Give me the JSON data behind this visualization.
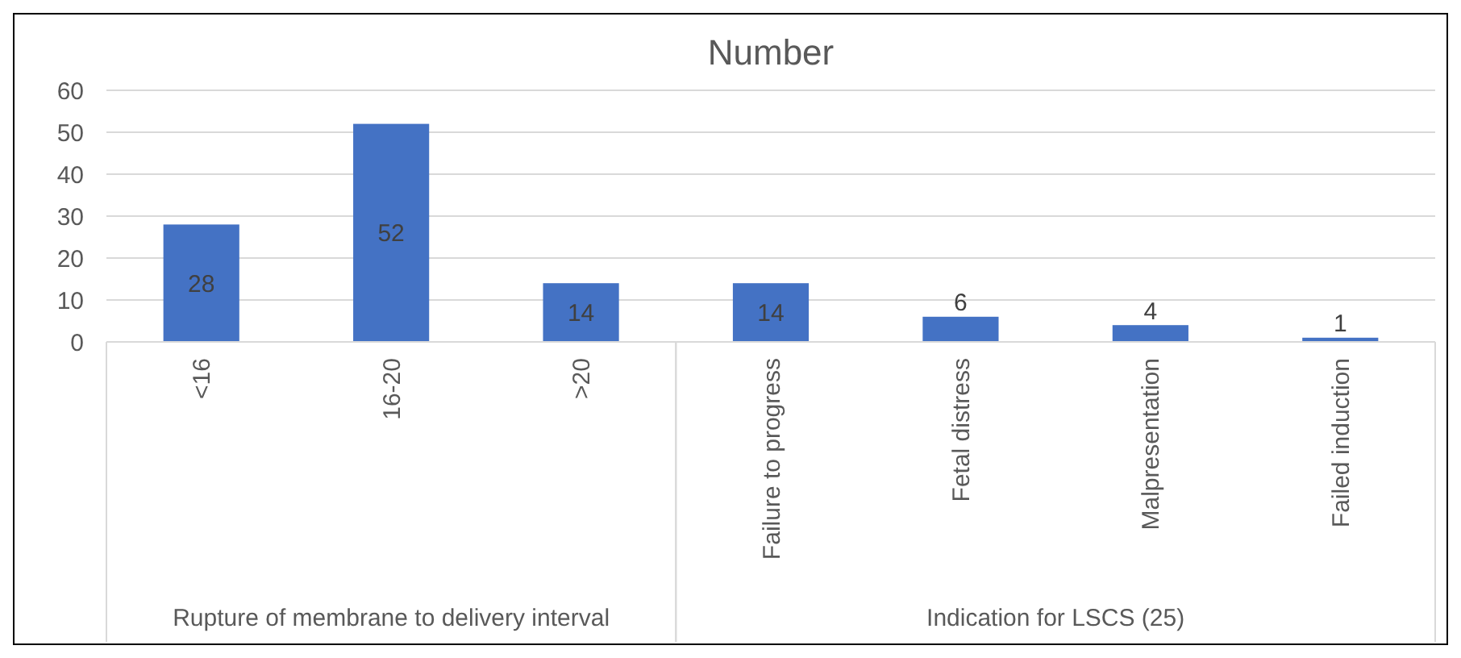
{
  "chart_data": {
    "type": "bar",
    "title": "Number",
    "categories": [
      "<16",
      "16-20",
      ">20",
      "Failure to progress",
      "Fetal distress",
      "Malpresentation",
      "Failed induction"
    ],
    "values": [
      28,
      52,
      14,
      14,
      6,
      4,
      1
    ],
    "color": "#4472c4",
    "ylim": [
      0,
      60
    ],
    "yticks": [
      0,
      10,
      20,
      30,
      40,
      50,
      60
    ],
    "grid": "y",
    "data_labels": true,
    "annotations": [
      "Rupture of membrane to delivery interval",
      "Indication for LSCS (25)"
    ]
  }
}
